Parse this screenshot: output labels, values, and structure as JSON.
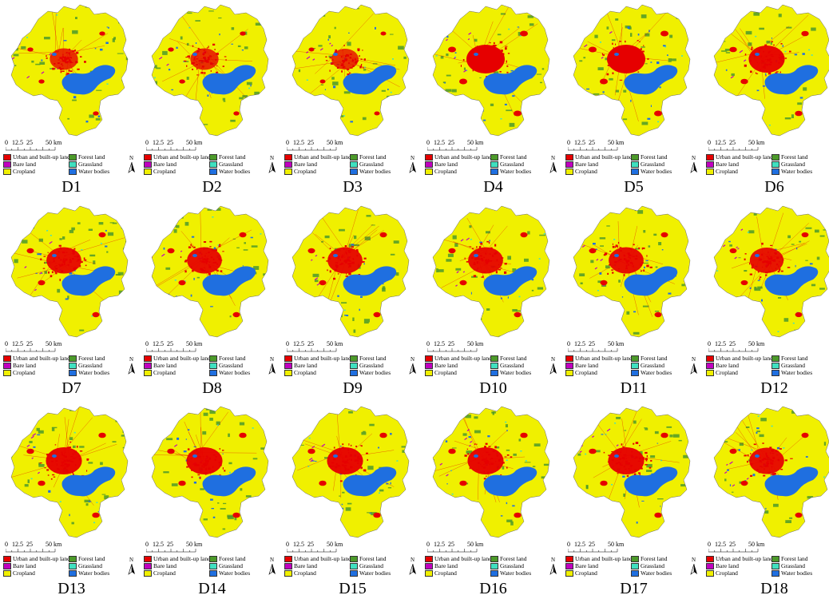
{
  "scale": {
    "labels": [
      "0",
      "12.5",
      "25",
      "50 km"
    ]
  },
  "legend": [
    {
      "label": "Urban and built-up land",
      "color": "#e60000"
    },
    {
      "label": "Forest land",
      "color": "#4c9a2a"
    },
    {
      "label": "Bare land",
      "color": "#c000c0"
    },
    {
      "label": "Grassland",
      "color": "#40e0c0"
    },
    {
      "label": "Cropland",
      "color": "#f0f000"
    },
    {
      "label": "Water bodies",
      "color": "#1f6fe0"
    }
  ],
  "north_label": "N",
  "panels": [
    {
      "label": "D1",
      "urban": 0.55
    },
    {
      "label": "D2",
      "urban": 0.55
    },
    {
      "label": "D3",
      "urban": 0.5
    },
    {
      "label": "D4",
      "urban": 1.0
    },
    {
      "label": "D5",
      "urban": 1.0
    },
    {
      "label": "D6",
      "urban": 0.9
    },
    {
      "label": "D7",
      "urban": 0.85
    },
    {
      "label": "D8",
      "urban": 0.85
    },
    {
      "label": "D9",
      "urban": 0.85
    },
    {
      "label": "D10",
      "urban": 0.85
    },
    {
      "label": "D11",
      "urban": 0.85
    },
    {
      "label": "D12",
      "urban": 0.8
    },
    {
      "label": "D13",
      "urban": 0.9
    },
    {
      "label": "D14",
      "urban": 0.9
    },
    {
      "label": "D15",
      "urban": 0.9
    },
    {
      "label": "D16",
      "urban": 0.9
    },
    {
      "label": "D17",
      "urban": 0.9
    },
    {
      "label": "D18",
      "urban": 0.85
    }
  ]
}
